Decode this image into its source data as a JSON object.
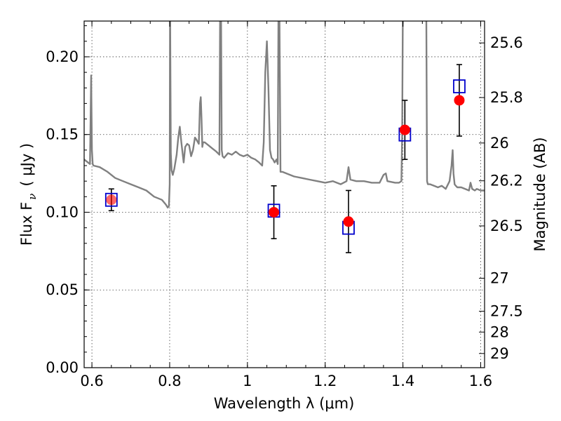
{
  "chart_data": {
    "type": "line",
    "xlabel": "Wavelength  λ (μm)",
    "ylabel": "Flux  F",
    "ylabel_sub": "ν",
    "ylabel_units": "( μJy )",
    "y2label": "Magnitude (AB)",
    "xlim": [
      0.58,
      1.61
    ],
    "ylim": [
      0.0,
      0.223
    ],
    "grid": true,
    "x_ticks": [
      0.6,
      0.8,
      1.0,
      1.2,
      1.4,
      1.6
    ],
    "x_tick_labels": [
      "0.6",
      "0.8",
      "1",
      "1.2",
      "1.4",
      "1.6"
    ],
    "y_ticks": [
      0.0,
      0.05,
      0.1,
      0.15,
      0.2
    ],
    "y_tick_labels": [
      "0.00",
      "0.05",
      "0.10",
      "0.15",
      "0.20"
    ],
    "mag_ticks": [
      25.6,
      25.8,
      26.0,
      26.2,
      26.5,
      27.0,
      27.5,
      28.0,
      29.0
    ],
    "mag_tick_labels": [
      "25.6",
      "25.8",
      "26",
      "26.2",
      "26.5",
      "27",
      "27.5",
      "28",
      "29"
    ],
    "series": [
      {
        "name": "model-spectrum",
        "kind": "line",
        "color": "#808080",
        "x": [
          0.58,
          0.595,
          0.596,
          0.598,
          0.6,
          0.602,
          0.604,
          0.62,
          0.64,
          0.66,
          0.68,
          0.7,
          0.72,
          0.74,
          0.76,
          0.78,
          0.79,
          0.795,
          0.798,
          0.8,
          0.801,
          0.803,
          0.805,
          0.808,
          0.812,
          0.818,
          0.822,
          0.826,
          0.83,
          0.836,
          0.84,
          0.845,
          0.85,
          0.855,
          0.86,
          0.865,
          0.868,
          0.875,
          0.878,
          0.88,
          0.882,
          0.884,
          0.886,
          0.89,
          0.9,
          0.91,
          0.92,
          0.928,
          0.93,
          0.932,
          0.934,
          0.936,
          0.94,
          0.95,
          0.96,
          0.97,
          0.98,
          0.99,
          1.0,
          1.01,
          1.02,
          1.03,
          1.038,
          1.042,
          1.046,
          1.05,
          1.054,
          1.058,
          1.062,
          1.066,
          1.07,
          1.075,
          1.078,
          1.08,
          1.082,
          1.085,
          1.09,
          1.1,
          1.12,
          1.14,
          1.16,
          1.18,
          1.2,
          1.22,
          1.24,
          1.255,
          1.26,
          1.265,
          1.28,
          1.3,
          1.32,
          1.34,
          1.35,
          1.356,
          1.36,
          1.38,
          1.39,
          1.396,
          1.398,
          1.4,
          1.402,
          1.404,
          1.41,
          1.42,
          1.43,
          1.44,
          1.45,
          1.455,
          1.458,
          1.46,
          1.462,
          1.464,
          1.47,
          1.48,
          1.49,
          1.5,
          1.51,
          1.52,
          1.525,
          1.528,
          1.53,
          1.533,
          1.536,
          1.54,
          1.55,
          1.56,
          1.57,
          1.574,
          1.578,
          1.585,
          1.59,
          1.6,
          1.61
        ],
        "y": [
          0.134,
          0.131,
          0.15,
          0.188,
          0.14,
          0.131,
          0.13,
          0.129,
          0.126,
          0.122,
          0.12,
          0.118,
          0.116,
          0.114,
          0.11,
          0.108,
          0.105,
          0.103,
          0.104,
          0.118,
          0.24,
          0.138,
          0.127,
          0.124,
          0.128,
          0.137,
          0.148,
          0.155,
          0.145,
          0.132,
          0.142,
          0.144,
          0.143,
          0.136,
          0.14,
          0.148,
          0.147,
          0.144,
          0.17,
          0.174,
          0.16,
          0.142,
          0.145,
          0.145,
          0.143,
          0.141,
          0.139,
          0.137,
          0.24,
          0.24,
          0.14,
          0.136,
          0.135,
          0.138,
          0.137,
          0.139,
          0.137,
          0.136,
          0.137,
          0.135,
          0.134,
          0.132,
          0.13,
          0.145,
          0.19,
          0.21,
          0.18,
          0.14,
          0.135,
          0.134,
          0.132,
          0.134,
          0.131,
          0.24,
          0.24,
          0.126,
          0.126,
          0.125,
          0.123,
          0.122,
          0.121,
          0.12,
          0.119,
          0.12,
          0.118,
          0.12,
          0.129,
          0.121,
          0.12,
          0.12,
          0.119,
          0.119,
          0.124,
          0.125,
          0.12,
          0.119,
          0.119,
          0.12,
          0.15,
          0.24,
          0.24,
          0.24,
          0.24,
          0.24,
          0.24,
          0.24,
          0.24,
          0.24,
          0.24,
          0.24,
          0.12,
          0.118,
          0.118,
          0.117,
          0.116,
          0.117,
          0.115,
          0.12,
          0.13,
          0.14,
          0.125,
          0.118,
          0.117,
          0.116,
          0.116,
          0.115,
          0.114,
          0.119,
          0.115,
          0.114,
          0.115,
          0.114,
          0.114
        ]
      },
      {
        "name": "model-photometry",
        "kind": "open-square",
        "color": "#0000cc",
        "x": [
          0.65,
          1.068,
          1.26,
          1.405,
          1.545
        ],
        "y": [
          0.108,
          0.101,
          0.09,
          0.15,
          0.181
        ]
      },
      {
        "name": "observed-photometry",
        "kind": "filled-circle",
        "color": "#ff0000",
        "x": [
          0.65,
          1.068,
          1.26,
          1.405,
          1.545
        ],
        "y": [
          0.108,
          0.1,
          0.094,
          0.153,
          0.172
        ],
        "yerr": [
          0.007,
          0.017,
          0.02,
          0.019,
          0.023
        ]
      }
    ]
  }
}
